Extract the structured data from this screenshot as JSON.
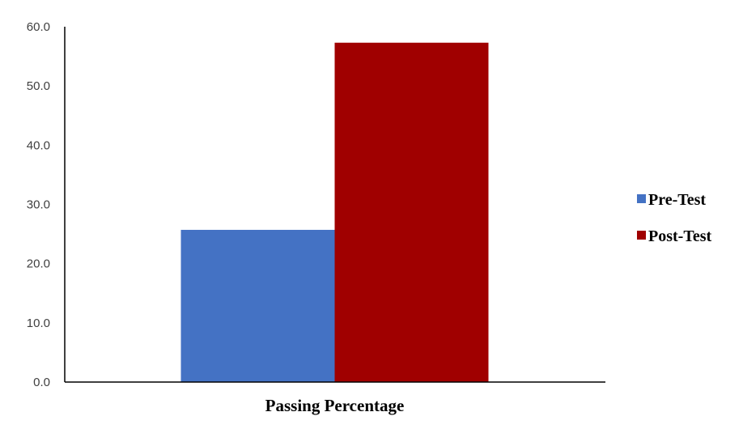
{
  "chart_data": {
    "type": "bar",
    "categories": [
      "Passing Percentage"
    ],
    "series": [
      {
        "name": "Pre-Test",
        "values": [
          25.7
        ],
        "color": "#4472C4"
      },
      {
        "name": "Post-Test",
        "values": [
          57.3
        ],
        "color": "#A00000"
      }
    ],
    "title": "",
    "xlabel": "",
    "ylabel": "",
    "ylim": [
      0,
      60
    ],
    "yticks": [
      "0.0",
      "10.0",
      "20.0",
      "30.0",
      "40.0",
      "50.0",
      "60.0"
    ],
    "grid": false,
    "legend_position": "right"
  }
}
